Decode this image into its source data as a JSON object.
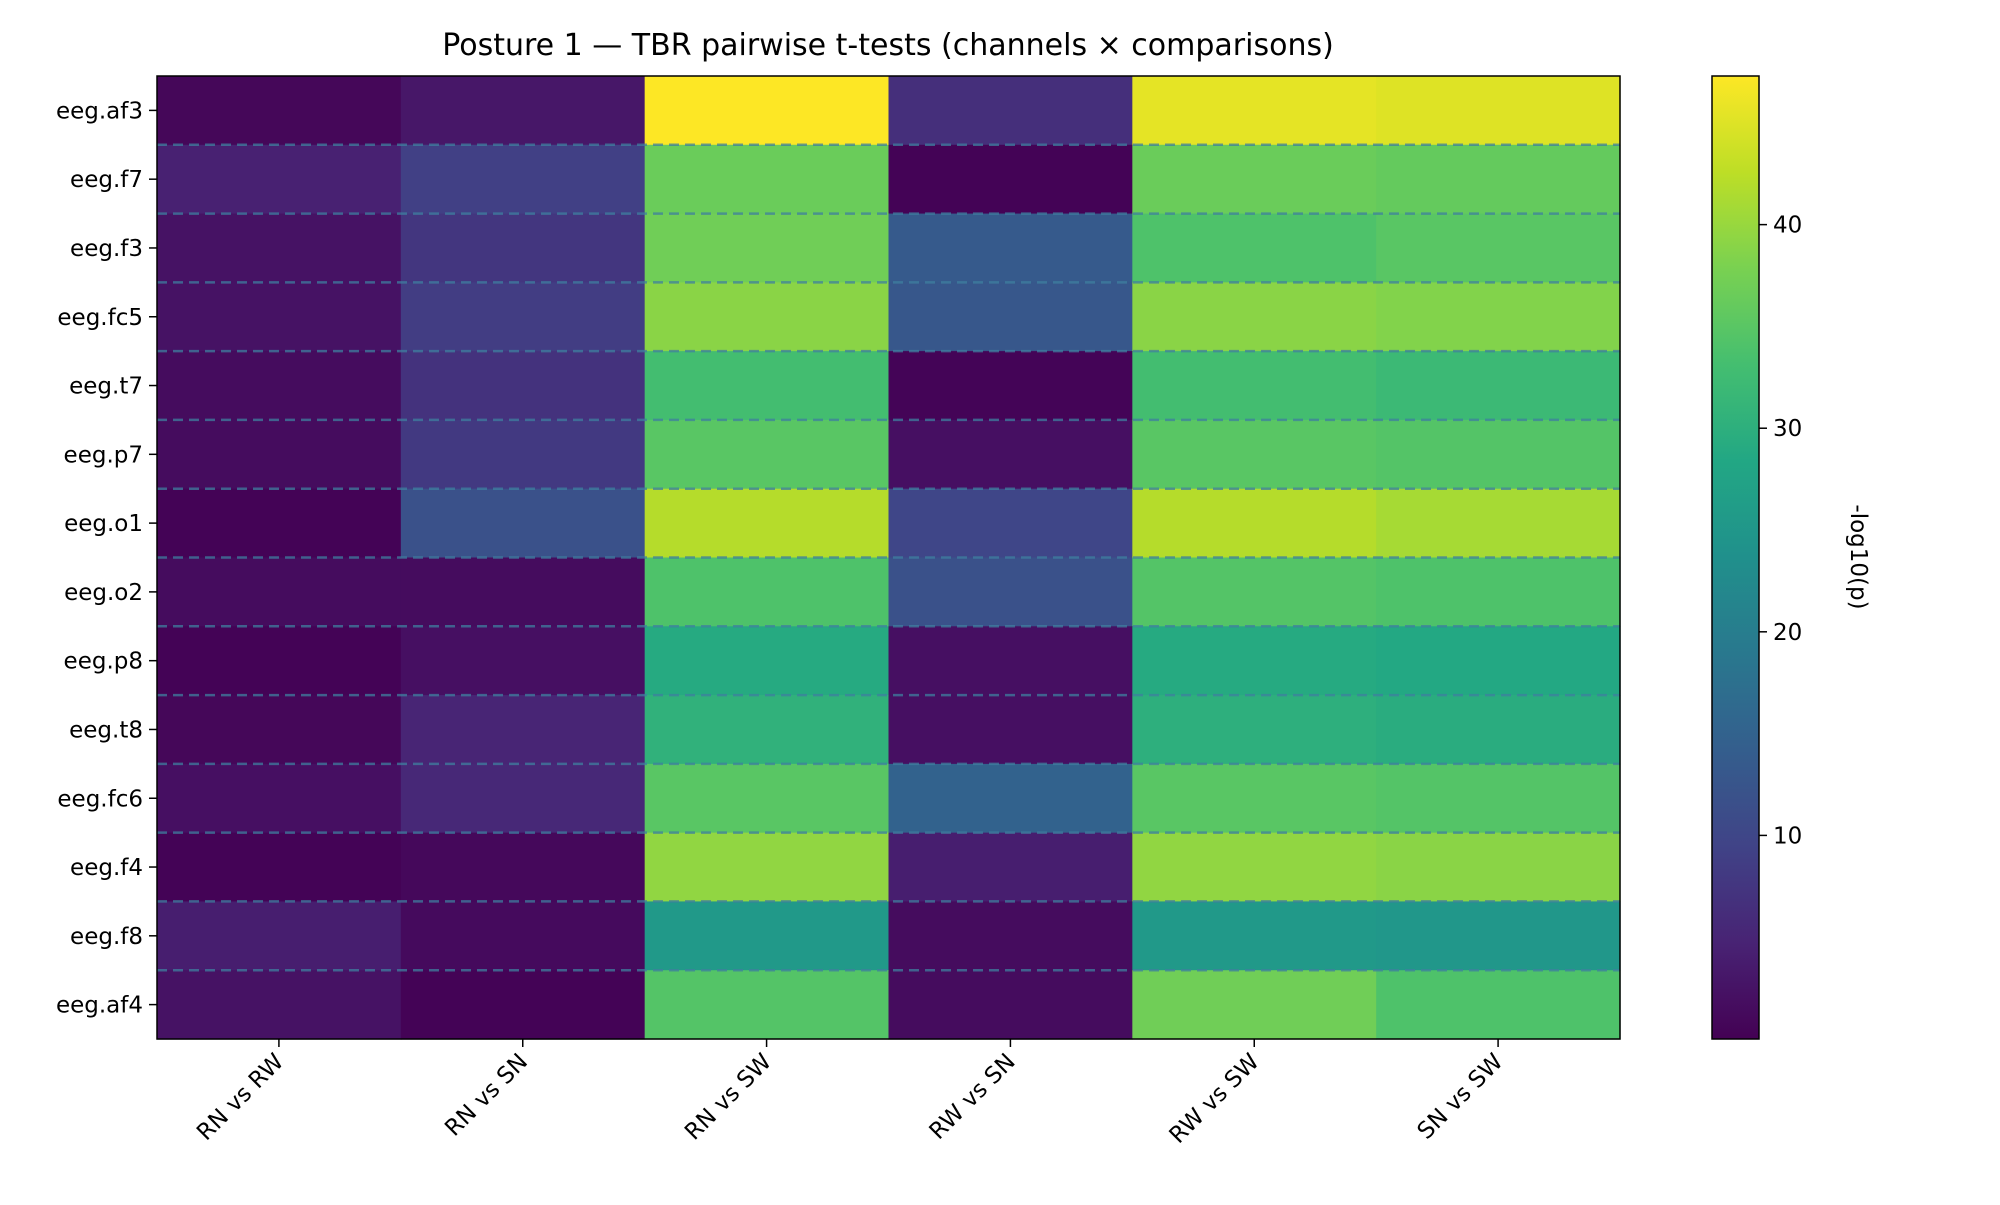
{
  "chart_data": {
    "type": "heatmap",
    "title": "Posture 1 — TBR pairwise t-tests (channels × comparisons)",
    "xlabel": "",
    "ylabel": "",
    "colorbar_label": "-log10(p)",
    "colormap": "viridis",
    "color_range": [
      0.0,
      47.3
    ],
    "colorbar_ticks": [
      10,
      20,
      30,
      40
    ],
    "colorbar_tick_labels": [
      "10",
      "20",
      "30",
      "40"
    ],
    "row_separators": "dashed",
    "columns": [
      "RN vs RW",
      "RN vs SN",
      "RN vs SW",
      "RW vs SN",
      "RW vs SW",
      "SN vs SW"
    ],
    "rows": [
      "eeg.af3",
      "eeg.f7",
      "eeg.f3",
      "eeg.fc5",
      "eeg.t7",
      "eeg.p7",
      "eeg.o1",
      "eeg.o2",
      "eeg.p8",
      "eeg.t8",
      "eeg.fc6",
      "eeg.f4",
      "eeg.f8",
      "eeg.af4"
    ],
    "values": [
      [
        0.8,
        3.0,
        47.3,
        6.5,
        45.5,
        45.0
      ],
      [
        4.5,
        9.0,
        36.5,
        0.3,
        36.5,
        36.0
      ],
      [
        2.3,
        7.5,
        37.0,
        13.5,
        34.0,
        35.0
      ],
      [
        2.3,
        8.5,
        39.0,
        13.0,
        39.0,
        38.5
      ],
      [
        1.5,
        7.0,
        33.0,
        0.4,
        33.0,
        32.0
      ],
      [
        1.5,
        8.0,
        35.0,
        2.0,
        35.0,
        34.5
      ],
      [
        0.3,
        12.0,
        42.0,
        10.0,
        42.0,
        41.0
      ],
      [
        1.5,
        1.5,
        34.0,
        12.0,
        34.5,
        34.0
      ],
      [
        0.3,
        2.0,
        29.0,
        2.0,
        29.0,
        28.5
      ],
      [
        0.8,
        5.0,
        30.5,
        2.0,
        30.0,
        29.5
      ],
      [
        2.0,
        5.5,
        35.0,
        15.0,
        35.0,
        34.5
      ],
      [
        0.3,
        1.0,
        39.5,
        4.0,
        39.5,
        39.0
      ],
      [
        4.0,
        1.3,
        25.5,
        1.5,
        25.5,
        25.0
      ],
      [
        2.3,
        0.3,
        34.5,
        1.5,
        37.0,
        34.0
      ]
    ]
  }
}
